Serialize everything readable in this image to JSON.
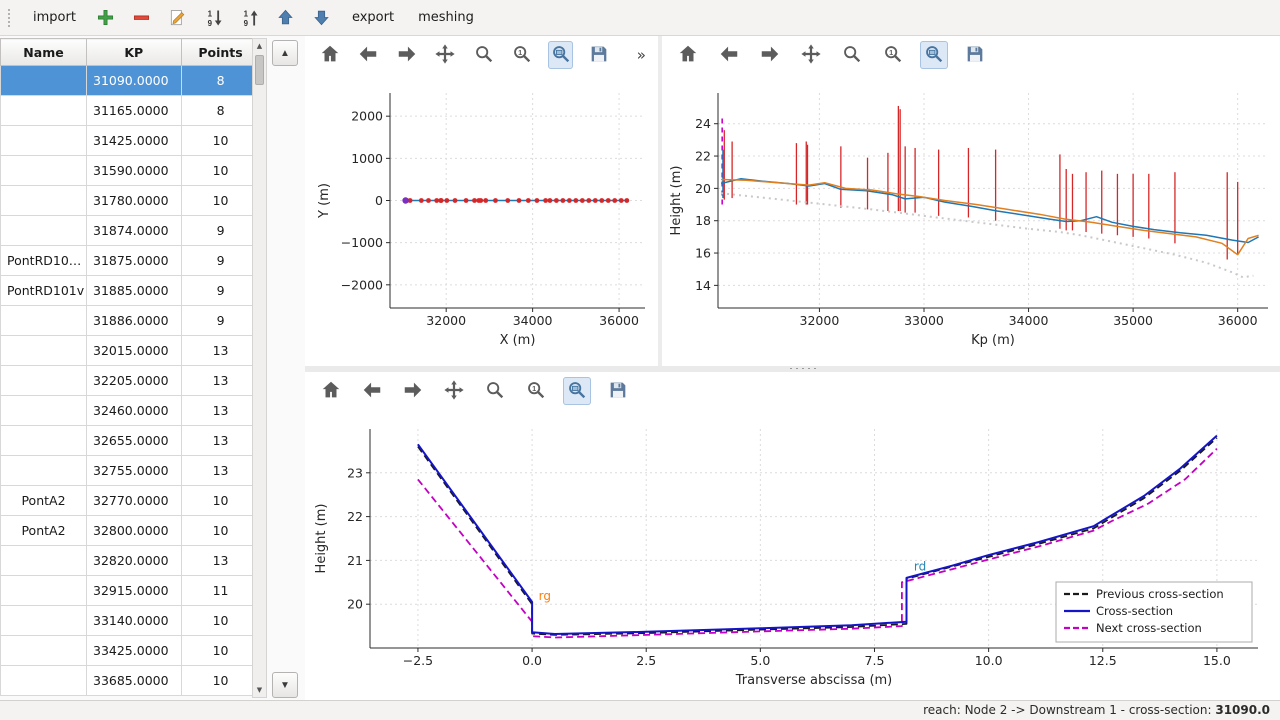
{
  "icons": {
    "triangle_up": "▲",
    "triangle_down": "▼",
    "overflow": "»"
  },
  "main_toolbar": {
    "items": [
      {
        "type": "text",
        "label": "import",
        "name": "import-button"
      },
      {
        "type": "icon",
        "icon": "add",
        "name": "add-cross-section-button"
      },
      {
        "type": "icon",
        "icon": "remove",
        "name": "remove-cross-section-button"
      },
      {
        "type": "icon",
        "icon": "edit",
        "name": "edit-cross-section-button"
      },
      {
        "type": "icon",
        "icon": "sort-asc",
        "name": "sort-ascending-button"
      },
      {
        "type": "icon",
        "icon": "sort-desc",
        "name": "sort-descending-button"
      },
      {
        "type": "icon",
        "icon": "move-up",
        "name": "move-up-button"
      },
      {
        "type": "icon",
        "icon": "move-down",
        "name": "move-down-button"
      },
      {
        "type": "text",
        "label": "export",
        "name": "export-button"
      },
      {
        "type": "text",
        "label": "meshing",
        "name": "meshing-button"
      }
    ]
  },
  "plot_toolbar": {
    "icons": [
      "home",
      "back",
      "forward",
      "pan",
      "zoom",
      "zoom-one",
      "zoom-rect",
      "save"
    ]
  },
  "table": {
    "columns": [
      "Name",
      "KP",
      "Points"
    ],
    "selected_index": 0,
    "rows": [
      [
        "",
        "31090.0000",
        "8"
      ],
      [
        "",
        "31165.0000",
        "8"
      ],
      [
        "",
        "31425.0000",
        "10"
      ],
      [
        "",
        "31590.0000",
        "10"
      ],
      [
        "",
        "31780.0000",
        "10"
      ],
      [
        "",
        "31874.0000",
        "9"
      ],
      [
        "PontRD10…",
        "31875.0000",
        "9"
      ],
      [
        "PontRD101v",
        "31885.0000",
        "9"
      ],
      [
        "",
        "31886.0000",
        "9"
      ],
      [
        "",
        "32015.0000",
        "13"
      ],
      [
        "",
        "32205.0000",
        "13"
      ],
      [
        "",
        "32460.0000",
        "13"
      ],
      [
        "",
        "32655.0000",
        "13"
      ],
      [
        "",
        "32755.0000",
        "13"
      ],
      [
        "PontA2",
        "32770.0000",
        "10"
      ],
      [
        "PontA2",
        "32800.0000",
        "10"
      ],
      [
        "",
        "32820.0000",
        "13"
      ],
      [
        "",
        "32915.0000",
        "11"
      ],
      [
        "",
        "33140.0000",
        "10"
      ],
      [
        "",
        "33425.0000",
        "10"
      ],
      [
        "",
        "33685.0000",
        "10"
      ]
    ]
  },
  "status_bar": {
    "prefix": "reach: Node 2 -> Downstream 1 - cross-section: ",
    "value": "31090.0"
  },
  "chart_data": [
    {
      "id": "plan-view",
      "type": "line",
      "xlabel": "X (m)",
      "ylabel": "Y (m)",
      "xlim": [
        30700,
        36600
      ],
      "ylim": [
        -2550,
        2550
      ],
      "xticks": [
        32000,
        34000,
        36000
      ],
      "xtick_labels": [
        "32000",
        "34000",
        "36000"
      ],
      "yticks": [
        -2000,
        -1000,
        0,
        1000,
        2000
      ],
      "ytick_labels": [
        "−2000",
        "−1000",
        "0",
        "1000",
        "2000"
      ],
      "series": [
        {
          "name": "river-axis",
          "color": "#1f77b4",
          "width": 1.4,
          "x": [
            31060,
            36180
          ],
          "y": [
            0,
            0
          ]
        },
        {
          "name": "cross-section-markers",
          "color": "#d62728",
          "line": false,
          "marker": true,
          "x": [
            31090,
            31165,
            31425,
            31590,
            31780,
            31874,
            31885,
            32015,
            32205,
            32460,
            32655,
            32755,
            32800,
            32915,
            33140,
            33425,
            33685,
            33900,
            34100,
            34300,
            34400,
            34550,
            34700,
            34850,
            35000,
            35150,
            35300,
            35450,
            35600,
            35750,
            35900,
            36050,
            36180
          ],
          "y": 0
        },
        {
          "name": "start-point",
          "color": "#7b2fbe",
          "line": false,
          "marker": true,
          "marker_size": 3.2,
          "x": [
            31060
          ],
          "y": 0
        }
      ]
    },
    {
      "id": "longitudinal-profile",
      "type": "line",
      "xlabel": "Kp (m)",
      "ylabel": "Height (m)",
      "xlim": [
        31030,
        36290
      ],
      "ylim": [
        12.6,
        25.9
      ],
      "xticks": [
        32000,
        33000,
        34000,
        35000,
        36000
      ],
      "xtick_labels": [
        "32000",
        "33000",
        "34000",
        "35000",
        "36000"
      ],
      "yticks": [
        14,
        16,
        18,
        20,
        22,
        24
      ],
      "ytick_labels": [
        "14",
        "16",
        "18",
        "20",
        "22",
        "24"
      ],
      "vlines": [
        {
          "x": 31070,
          "y0": 19.0,
          "y1": 24.4,
          "color": "#cc00cc",
          "dash": true,
          "width": 1.6
        },
        {
          "x": 31078,
          "y0": 19.4,
          "y1": 22.4,
          "color": "#1f77b4",
          "width": 1.6
        },
        {
          "x": 31090,
          "y0": 19.3,
          "y1": 23.6
        },
        {
          "x": 31165,
          "y0": 19.4,
          "y1": 22.9
        },
        {
          "x": 31780,
          "y0": 19.0,
          "y1": 22.8
        },
        {
          "x": 31874,
          "y0": 19.0,
          "y1": 22.9
        },
        {
          "x": 31886,
          "y0": 19.0,
          "y1": 22.7
        },
        {
          "x": 32205,
          "y0": 18.8,
          "y1": 22.6
        },
        {
          "x": 32460,
          "y0": 18.7,
          "y1": 21.9
        },
        {
          "x": 32655,
          "y0": 18.6,
          "y1": 22.2
        },
        {
          "x": 32755,
          "y0": 18.6,
          "y1": 25.1
        },
        {
          "x": 32772,
          "y0": 18.6,
          "y1": 24.9
        },
        {
          "x": 32820,
          "y0": 18.5,
          "y1": 22.6
        },
        {
          "x": 32915,
          "y0": 18.5,
          "y1": 22.5
        },
        {
          "x": 33140,
          "y0": 18.3,
          "y1": 22.4
        },
        {
          "x": 33425,
          "y0": 18.2,
          "y1": 22.5
        },
        {
          "x": 33685,
          "y0": 18.0,
          "y1": 22.4
        },
        {
          "x": 34300,
          "y0": 17.5,
          "y1": 22.1
        },
        {
          "x": 34360,
          "y0": 17.4,
          "y1": 21.2
        },
        {
          "x": 34420,
          "y0": 17.4,
          "y1": 20.9
        },
        {
          "x": 34550,
          "y0": 17.3,
          "y1": 21.0
        },
        {
          "x": 34700,
          "y0": 17.2,
          "y1": 21.1
        },
        {
          "x": 34850,
          "y0": 17.1,
          "y1": 20.9
        },
        {
          "x": 35000,
          "y0": 17.0,
          "y1": 20.9
        },
        {
          "x": 35150,
          "y0": 16.9,
          "y1": 20.9
        },
        {
          "x": 35400,
          "y0": 16.6,
          "y1": 21.0
        },
        {
          "x": 35900,
          "y0": 15.6,
          "y1": 21.0
        },
        {
          "x": 36000,
          "y0": 15.9,
          "y1": 20.4
        }
      ],
      "series": [
        {
          "name": "bottom-dotted",
          "color": "#c9c9c9",
          "width": 2,
          "dash": "2 4",
          "x": [
            31060,
            31500,
            32000,
            32500,
            33000,
            33500,
            34000,
            34300,
            34500,
            34800,
            35100,
            35400,
            35700,
            35950,
            36050,
            36150
          ],
          "y": [
            19.7,
            19.4,
            19.05,
            18.7,
            18.3,
            17.9,
            17.5,
            17.3,
            17.1,
            16.7,
            16.3,
            15.9,
            15.4,
            14.8,
            14.5,
            14.6
          ]
        },
        {
          "name": "profile-line-blue",
          "color": "#1f77b4",
          "width": 1.5,
          "x": [
            31060,
            31250,
            31450,
            31700,
            31900,
            32050,
            32200,
            32450,
            32700,
            32820,
            33000,
            33200,
            33450,
            33700,
            33950,
            34200,
            34360,
            34500,
            34650,
            34800,
            35000,
            35200,
            35450,
            35700,
            35950,
            36100,
            36200
          ],
          "y": [
            20.3,
            20.6,
            20.45,
            20.3,
            20.15,
            20.3,
            19.95,
            19.85,
            19.6,
            19.35,
            19.45,
            19.15,
            18.9,
            18.6,
            18.35,
            18.1,
            17.95,
            18.0,
            18.25,
            17.9,
            17.65,
            17.45,
            17.25,
            17.1,
            16.8,
            16.65,
            17.0
          ]
        },
        {
          "name": "profile-line-orange",
          "color": "#e08020",
          "width": 1.5,
          "x": [
            31060,
            31300,
            31600,
            31900,
            32050,
            32250,
            32500,
            32750,
            32950,
            33200,
            33500,
            33800,
            34100,
            34350,
            34600,
            34850,
            35100,
            35350,
            35600,
            35850,
            36000,
            36100,
            36200
          ],
          "y": [
            20.55,
            20.5,
            20.35,
            20.2,
            20.35,
            20.0,
            19.9,
            19.65,
            19.5,
            19.25,
            19.0,
            18.7,
            18.4,
            18.1,
            17.9,
            17.65,
            17.4,
            17.2,
            17.0,
            16.6,
            15.9,
            16.9,
            17.1
          ]
        }
      ]
    },
    {
      "id": "cross-section",
      "type": "line",
      "xlabel": "Transverse abscissa (m)",
      "ylabel": "Height (m)",
      "xlim": [
        -3.55,
        15.9
      ],
      "ylim": [
        19.0,
        24.0
      ],
      "xticks": [
        -2.5,
        0,
        2.5,
        5,
        7.5,
        10,
        12.5,
        15
      ],
      "xtick_labels": [
        "−2.5",
        "0.0",
        "2.5",
        "5.0",
        "7.5",
        "10.0",
        "12.5",
        "15.0"
      ],
      "yticks": [
        20,
        21,
        22,
        23
      ],
      "ytick_labels": [
        "20",
        "21",
        "22",
        "23"
      ],
      "series": [
        {
          "name": "previous-cross-section",
          "color": "#1a1a1a",
          "width": 1.8,
          "dash": "7 4",
          "x": [
            -2.5,
            0,
            0,
            0.5,
            2.5,
            5,
            7,
            8.2,
            8.2,
            9.2,
            10,
            11.1,
            12.3,
            12.6,
            13.4,
            14.2,
            15
          ],
          "y": [
            23.6,
            20.0,
            19.33,
            19.3,
            19.34,
            19.42,
            19.48,
            19.55,
            20.58,
            20.86,
            21.08,
            21.38,
            21.73,
            21.92,
            22.42,
            23.05,
            23.8
          ]
        },
        {
          "name": "next-cross-section",
          "color": "#c400c4",
          "width": 1.8,
          "dash": "7 4",
          "x": [
            -2.5,
            0,
            0,
            0.5,
            2.5,
            5,
            7,
            8.1,
            8.1,
            9.2,
            10,
            11.1,
            12.3,
            12.7,
            13.5,
            14.3,
            15
          ],
          "y": [
            22.85,
            19.6,
            19.27,
            19.24,
            19.3,
            19.38,
            19.44,
            19.5,
            20.5,
            20.8,
            21.02,
            21.32,
            21.68,
            21.9,
            22.3,
            22.85,
            23.55
          ]
        },
        {
          "name": "current-cross-section",
          "color": "#1414c8",
          "width": 2,
          "x": [
            -2.5,
            0,
            0,
            0.5,
            2.5,
            5,
            7,
            8.2,
            8.2,
            9.2,
            10,
            11.1,
            12.3,
            12.6,
            13.4,
            14.2,
            15
          ],
          "y": [
            23.65,
            20.05,
            19.36,
            19.32,
            19.37,
            19.45,
            19.52,
            19.6,
            20.6,
            20.88,
            21.12,
            21.42,
            21.78,
            21.97,
            22.47,
            23.1,
            23.85
          ]
        }
      ],
      "annotations": [
        {
          "text": "rg",
          "x": 0.1,
          "y": 20.05,
          "color": "#ff7f0e"
        },
        {
          "text": "rd",
          "x": 8.32,
          "y": 20.72,
          "color": "#2787b5"
        }
      ],
      "legend": {
        "position": "lower-right",
        "items": [
          {
            "label": "Previous cross-section",
            "color": "#1a1a1a",
            "dash": "6 3"
          },
          {
            "label": "Cross-section",
            "color": "#1414c8",
            "dash": null
          },
          {
            "label": "Next cross-section",
            "color": "#c400c4",
            "dash": "6 3"
          }
        ]
      }
    }
  ]
}
